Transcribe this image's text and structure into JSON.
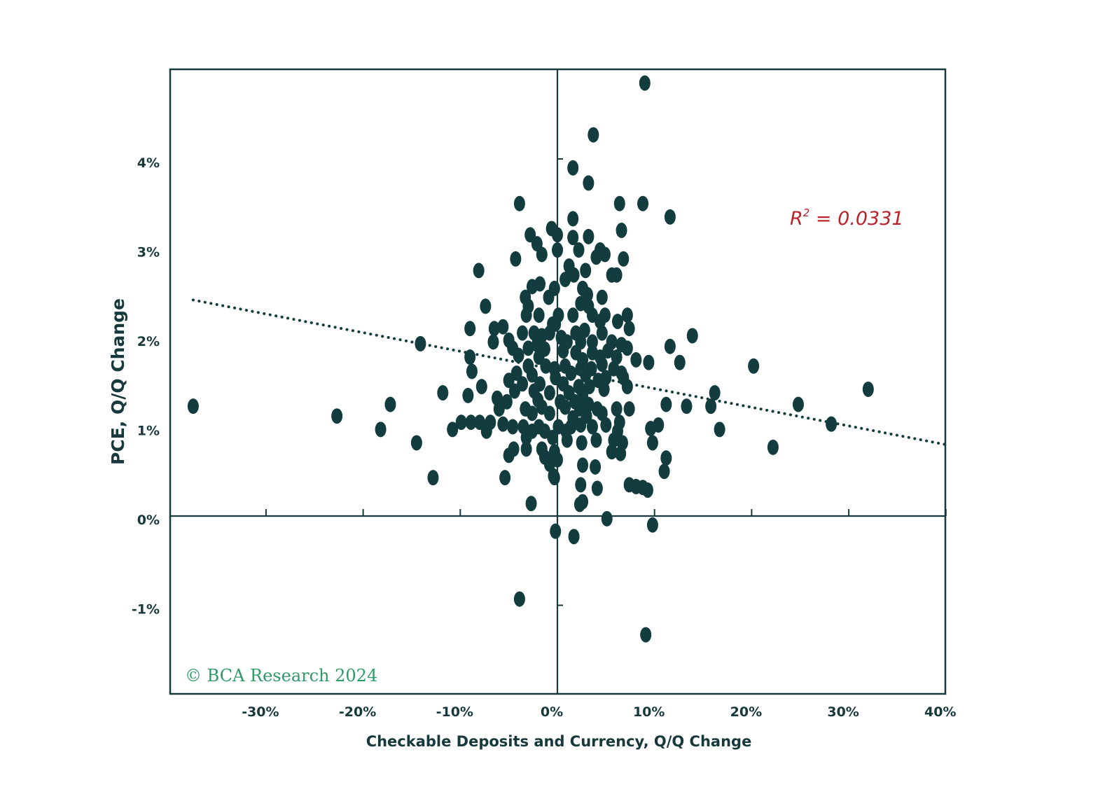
{
  "chart_data": {
    "type": "scatter",
    "title": "",
    "xlabel": "Checkable Deposits and Currency, Q/Q Change",
    "ylabel": "PCE, Q/Q Change",
    "xlim": [
      -40,
      40
    ],
    "ylim": [
      -2,
      5
    ],
    "x_ticks": [
      -30,
      -20,
      -10,
      0,
      10,
      20,
      30,
      40
    ],
    "x_tick_labels": [
      "-30%",
      "-20%",
      "-10%",
      "0%",
      "10%",
      "20%",
      "30%",
      "40%"
    ],
    "y_ticks": [
      -1,
      0,
      1,
      2,
      3,
      4
    ],
    "y_tick_labels": [
      "-1%",
      "0%",
      "1%",
      "2%",
      "3%",
      "4%"
    ],
    "grid": false,
    "annotation": {
      "r2_label": "R",
      "r2_sup": "2",
      "r2_value": " = 0.0331"
    },
    "credit": "© BCA Research 2024",
    "colors": {
      "points": "#133c3e",
      "frame": "#17393b",
      "trendline": "#133c3e",
      "r2": "#b8242b",
      "credit": "#2e9a66"
    },
    "trendline": {
      "x": [
        -37.5,
        40
      ],
      "y": [
        2.42,
        0.8
      ]
    },
    "points": [
      [
        9.0,
        4.85
      ],
      [
        3.7,
        4.27
      ],
      [
        1.6,
        3.9
      ],
      [
        3.2,
        3.73
      ],
      [
        6.4,
        3.5
      ],
      [
        8.8,
        3.5
      ],
      [
        11.6,
        3.35
      ],
      [
        -3.9,
        3.5
      ],
      [
        1.6,
        3.33
      ],
      [
        6.6,
        3.2
      ],
      [
        -2.8,
        3.15
      ],
      [
        -0.6,
        3.22
      ],
      [
        0.0,
        3.15
      ],
      [
        1.6,
        3.12
      ],
      [
        3.2,
        3.13
      ],
      [
        -2.1,
        3.05
      ],
      [
        0.0,
        2.98
      ],
      [
        2.2,
        2.98
      ],
      [
        4.4,
        2.98
      ],
      [
        4.0,
        2.9
      ],
      [
        4.9,
        2.93
      ],
      [
        -1.6,
        2.93
      ],
      [
        -4.3,
        2.88
      ],
      [
        6.8,
        2.88
      ],
      [
        1.2,
        2.8
      ],
      [
        2.9,
        2.75
      ],
      [
        -8.1,
        2.75
      ],
      [
        1.7,
        2.7
      ],
      [
        5.6,
        2.7
      ],
      [
        6.1,
        2.7
      ],
      [
        0.8,
        2.65
      ],
      [
        2.6,
        2.55
      ],
      [
        -1.8,
        2.6
      ],
      [
        -2.6,
        2.57
      ],
      [
        -0.3,
        2.55
      ],
      [
        3.1,
        2.48
      ],
      [
        4.6,
        2.45
      ],
      [
        -3.3,
        2.45
      ],
      [
        -3.0,
        2.35
      ],
      [
        -0.9,
        2.45
      ],
      [
        2.4,
        2.38
      ],
      [
        3.2,
        2.35
      ],
      [
        -7.4,
        2.35
      ],
      [
        -3.2,
        2.25
      ],
      [
        -1.9,
        2.25
      ],
      [
        0.1,
        2.25
      ],
      [
        1.6,
        2.25
      ],
      [
        3.6,
        2.25
      ],
      [
        4.9,
        2.25
      ],
      [
        7.2,
        2.25
      ],
      [
        -0.5,
        2.15
      ],
      [
        -0.2,
        2.15
      ],
      [
        4.4,
        2.18
      ],
      [
        6.2,
        2.18
      ],
      [
        -9.0,
        2.1
      ],
      [
        -6.5,
        2.1
      ],
      [
        -5.6,
        2.12
      ],
      [
        -3.6,
        2.05
      ],
      [
        -2.4,
        2.05
      ],
      [
        -0.8,
        2.05
      ],
      [
        1.9,
        2.05
      ],
      [
        2.8,
        2.08
      ],
      [
        4.6,
        2.05
      ],
      [
        7.4,
        2.1
      ],
      [
        -1.6,
        2.02
      ],
      [
        0.4,
        2.0
      ],
      [
        1.0,
        1.95
      ],
      [
        2.4,
        1.95
      ],
      [
        3.6,
        1.95
      ],
      [
        5.6,
        1.95
      ],
      [
        -2.1,
        1.92
      ],
      [
        6.6,
        1.92
      ],
      [
        -6.6,
        1.95
      ],
      [
        -5.0,
        1.97
      ],
      [
        -4.6,
        1.88
      ],
      [
        -14.1,
        1.93
      ],
      [
        -3.0,
        1.88
      ],
      [
        -1.3,
        1.87
      ],
      [
        0.6,
        1.85
      ],
      [
        1.9,
        1.83
      ],
      [
        3.6,
        1.83
      ],
      [
        5.2,
        1.85
      ],
      [
        7.2,
        1.88
      ],
      [
        11.6,
        1.9
      ],
      [
        13.9,
        2.02
      ],
      [
        -9.0,
        1.78
      ],
      [
        -4.0,
        1.8
      ],
      [
        -1.9,
        1.78
      ],
      [
        2.6,
        1.75
      ],
      [
        4.4,
        1.78
      ],
      [
        6.1,
        1.78
      ],
      [
        8.1,
        1.75
      ],
      [
        9.4,
        1.72
      ],
      [
        12.6,
        1.72
      ],
      [
        20.2,
        1.68
      ],
      [
        -8.8,
        1.62
      ],
      [
        -3.0,
        1.68
      ],
      [
        -1.2,
        1.68
      ],
      [
        -0.3,
        1.65
      ],
      [
        0.8,
        1.68
      ],
      [
        2.4,
        1.65
      ],
      [
        3.5,
        1.65
      ],
      [
        4.6,
        1.7
      ],
      [
        5.8,
        1.65
      ],
      [
        6.6,
        1.6
      ],
      [
        -4.2,
        1.6
      ],
      [
        -2.6,
        1.58
      ],
      [
        -0.2,
        1.55
      ],
      [
        1.4,
        1.6
      ],
      [
        2.9,
        1.58
      ],
      [
        4.2,
        1.52
      ],
      [
        5.0,
        1.55
      ],
      [
        6.8,
        1.55
      ],
      [
        -5.0,
        1.52
      ],
      [
        -3.6,
        1.48
      ],
      [
        -1.8,
        1.48
      ],
      [
        0.6,
        1.48
      ],
      [
        2.2,
        1.45
      ],
      [
        3.3,
        1.45
      ],
      [
        4.8,
        1.42
      ],
      [
        7.2,
        1.45
      ],
      [
        -7.8,
        1.45
      ],
      [
        -4.4,
        1.4
      ],
      [
        -2.4,
        1.4
      ],
      [
        -0.8,
        1.38
      ],
      [
        1.2,
        1.38
      ],
      [
        2.6,
        1.35
      ],
      [
        16.2,
        1.38
      ],
      [
        32.0,
        1.42
      ],
      [
        -11.8,
        1.38
      ],
      [
        -9.2,
        1.35
      ],
      [
        -6.2,
        1.32
      ],
      [
        -5.2,
        1.28
      ],
      [
        -2.0,
        1.3
      ],
      [
        0.3,
        1.28
      ],
      [
        1.8,
        1.28
      ],
      [
        3.2,
        1.25
      ],
      [
        -37.5,
        1.23
      ],
      [
        -17.2,
        1.25
      ],
      [
        11.2,
        1.25
      ],
      [
        13.3,
        1.23
      ],
      [
        15.8,
        1.23
      ],
      [
        24.8,
        1.25
      ],
      [
        -6.0,
        1.2
      ],
      [
        -3.3,
        1.2
      ],
      [
        -1.6,
        1.22
      ],
      [
        0.8,
        1.22
      ],
      [
        2.3,
        1.2
      ],
      [
        4.1,
        1.2
      ],
      [
        6.1,
        1.2
      ],
      [
        7.4,
        1.2
      ],
      [
        -2.6,
        1.15
      ],
      [
        -0.8,
        1.15
      ],
      [
        1.6,
        1.1
      ],
      [
        3.0,
        1.12
      ],
      [
        4.6,
        1.15
      ],
      [
        -22.7,
        1.12
      ],
      [
        -9.9,
        1.05
      ],
      [
        -8.9,
        1.05
      ],
      [
        -8.0,
        1.05
      ],
      [
        -6.9,
        1.05
      ],
      [
        -5.6,
        1.03
      ],
      [
        -4.6,
        1.0
      ],
      [
        -3.5,
        1.0
      ],
      [
        -1.9,
        1.0
      ],
      [
        0.1,
        1.0
      ],
      [
        1.4,
        1.0
      ],
      [
        2.4,
        1.02
      ],
      [
        3.6,
        1.0
      ],
      [
        5.0,
        1.02
      ],
      [
        6.4,
        1.05
      ],
      [
        10.4,
        1.02
      ],
      [
        -10.8,
        0.97
      ],
      [
        -18.2,
        0.97
      ],
      [
        -7.3,
        0.95
      ],
      [
        -2.6,
        0.95
      ],
      [
        -1.3,
        0.95
      ],
      [
        0.9,
        0.95
      ],
      [
        6.2,
        0.95
      ],
      [
        9.6,
        0.98
      ],
      [
        16.7,
        0.97
      ],
      [
        28.2,
        1.03
      ],
      [
        -3.2,
        0.88
      ],
      [
        -0.5,
        0.88
      ],
      [
        1.0,
        0.85
      ],
      [
        2.5,
        0.82
      ],
      [
        4.0,
        0.85
      ],
      [
        5.8,
        0.85
      ],
      [
        6.7,
        0.82
      ],
      [
        9.8,
        0.82
      ],
      [
        -14.5,
        0.82
      ],
      [
        22.2,
        0.77
      ],
      [
        -4.5,
        0.75
      ],
      [
        -3.2,
        0.75
      ],
      [
        -1.6,
        0.75
      ],
      [
        -0.3,
        0.72
      ],
      [
        5.6,
        0.72
      ],
      [
        6.5,
        0.7
      ],
      [
        11.2,
        0.65
      ],
      [
        -5.0,
        0.68
      ],
      [
        -1.3,
        0.66
      ],
      [
        0.0,
        0.63
      ],
      [
        -0.8,
        0.58
      ],
      [
        2.6,
        0.57
      ],
      [
        3.9,
        0.55
      ],
      [
        11.0,
        0.5
      ],
      [
        -0.4,
        0.45
      ],
      [
        -12.8,
        0.43
      ],
      [
        -5.4,
        0.43
      ],
      [
        -0.3,
        0.43
      ],
      [
        2.4,
        0.35
      ],
      [
        4.1,
        0.31
      ],
      [
        7.4,
        0.35
      ],
      [
        8.1,
        0.33
      ],
      [
        8.8,
        0.32
      ],
      [
        9.3,
        0.29
      ],
      [
        -2.7,
        0.14
      ],
      [
        2.3,
        0.13
      ],
      [
        2.6,
        0.16
      ],
      [
        5.1,
        -0.03
      ],
      [
        9.8,
        -0.1
      ],
      [
        -0.2,
        -0.17
      ],
      [
        1.7,
        -0.23
      ],
      [
        -3.9,
        -0.93
      ],
      [
        9.1,
        -1.33
      ]
    ]
  }
}
